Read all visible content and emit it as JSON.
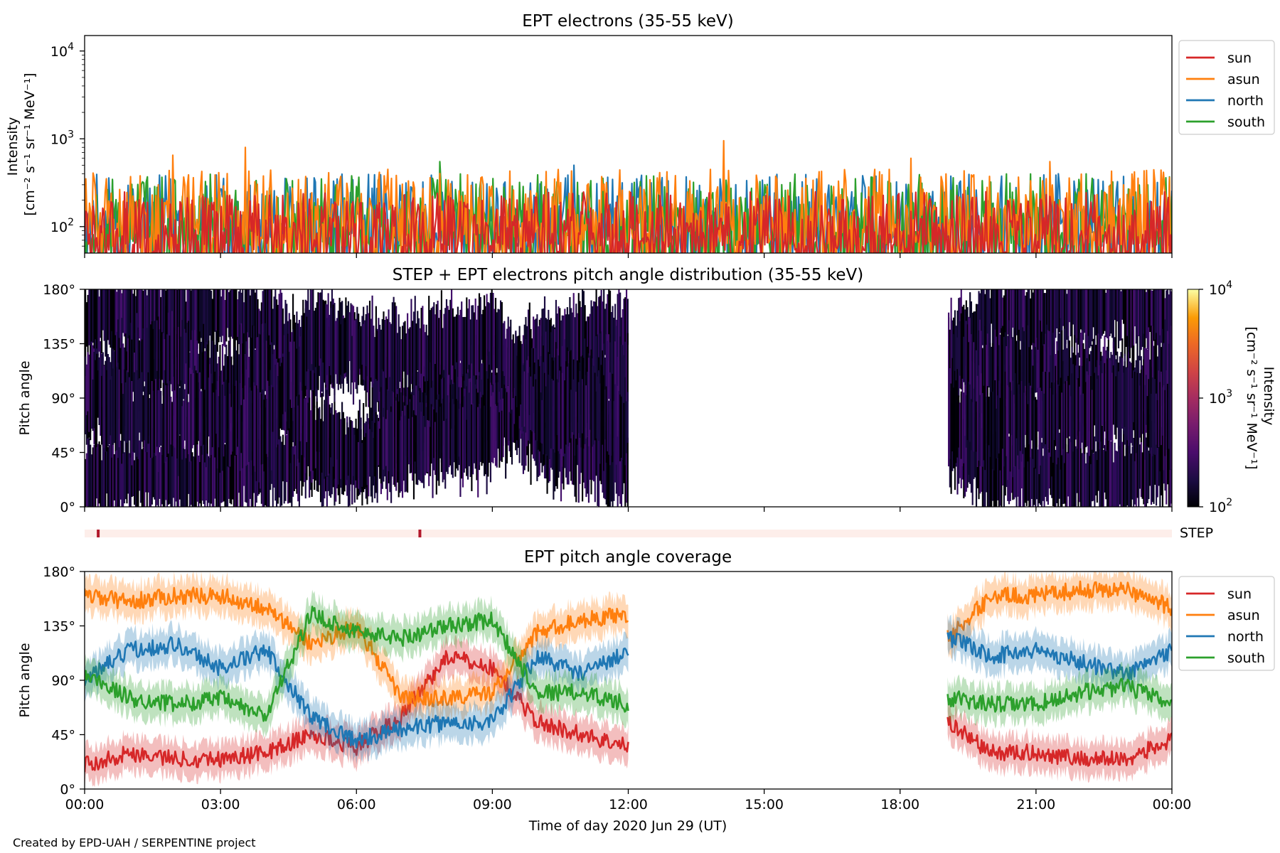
{
  "credit": "Created by EPD-UAH / SERPENTINE project",
  "colors": {
    "sun": "#d62728",
    "asun": "#ff7f0e",
    "north": "#1f77b4",
    "south": "#2ca02c",
    "step_bar": "#fdeeea",
    "step_mark": "#b2182b"
  },
  "x_axis": {
    "label": "Time of day 2020 Jun 29 (UT)",
    "range_hours": [
      0,
      24
    ],
    "ticks": [
      {
        "h": 0,
        "label": "00:00"
      },
      {
        "h": 3,
        "label": "03:00"
      },
      {
        "h": 6,
        "label": "06:00"
      },
      {
        "h": 9,
        "label": "09:00"
      },
      {
        "h": 12,
        "label": "12:00"
      },
      {
        "h": 15,
        "label": "15:00"
      },
      {
        "h": 18,
        "label": "18:00"
      },
      {
        "h": 21,
        "label": "21:00"
      },
      {
        "h": 24,
        "label": "00:00"
      }
    ]
  },
  "chart_data": [
    {
      "id": "intensity",
      "type": "line",
      "title": "EPT electrons (35-55 keV)",
      "ylabel_line1": "Intensity",
      "ylabel_line2": "[cm⁻² s⁻¹ sr⁻¹ MeV⁻¹]",
      "yscale": "log",
      "ylim": [
        50,
        15000
      ],
      "yticks": [
        {
          "v": 100,
          "base": "10",
          "exp": "2"
        },
        {
          "v": 1000,
          "base": "10",
          "exp": "3"
        },
        {
          "v": 10000,
          "base": "10",
          "exp": "4"
        }
      ],
      "legend_position": "outside-right",
      "legend": [
        "sun",
        "asun",
        "north",
        "south"
      ],
      "series_summary": {
        "sun": {
          "typical_range": [
            50,
            250
          ]
        },
        "asun": {
          "typical_range": [
            60,
            450
          ]
        },
        "north": {
          "typical_range": [
            60,
            400
          ]
        },
        "south": {
          "typical_range": [
            60,
            400
          ]
        }
      },
      "peaks": [
        {
          "series": "asun",
          "t_hours": 1.95,
          "value": 650
        },
        {
          "series": "asun",
          "t_hours": 3.55,
          "value": 800
        },
        {
          "series": "asun",
          "t_hours": 14.1,
          "value": 950
        },
        {
          "series": "asun",
          "t_hours": 18.25,
          "value": 600
        },
        {
          "series": "asun",
          "t_hours": 21.3,
          "value": 550
        },
        {
          "series": "south",
          "t_hours": 7.85,
          "value": 550
        },
        {
          "series": "north",
          "t_hours": 10.8,
          "value": 500
        }
      ]
    },
    {
      "id": "pad",
      "type": "heatmap",
      "title": "STEP + EPT electrons pitch angle distribution (35-55 keV)",
      "ylabel": "Pitch angle",
      "ylim": [
        0,
        180
      ],
      "yticks": [
        "0°",
        "45°",
        "90°",
        "135°",
        "180°"
      ],
      "data_intervals_hours": [
        [
          0,
          12
        ],
        [
          19.05,
          24
        ]
      ],
      "colorbar": {
        "label_line1": "Intensity",
        "label_line2": "[cm⁻² s⁻¹ sr⁻¹ MeV⁻¹]",
        "scale": "log",
        "range": [
          100,
          10000
        ],
        "ticks": [
          {
            "base": "10",
            "exp": "2"
          },
          {
            "base": "10",
            "exp": "3"
          },
          {
            "base": "10",
            "exp": "4"
          }
        ]
      }
    },
    {
      "id": "step",
      "type": "bar",
      "label": "STEP",
      "marks_hours": [
        0.3,
        7.4
      ]
    },
    {
      "id": "coverage",
      "type": "line",
      "title": "EPT pitch angle coverage",
      "ylabel": "Pitch angle",
      "ylim": [
        0,
        180
      ],
      "yticks": [
        "0°",
        "45°",
        "90°",
        "135°",
        "180°"
      ],
      "legend_position": "outside-right",
      "legend": [
        "sun",
        "asun",
        "north",
        "south"
      ],
      "data_intervals_hours": [
        [
          0,
          12
        ],
        [
          19.05,
          24
        ]
      ],
      "band_halfwidth_deg": 14,
      "series": [
        {
          "name": "sun",
          "t": [
            0,
            1,
            2,
            3,
            4,
            5,
            6,
            7,
            8,
            9,
            10,
            11,
            12,
            19.1,
            20,
            21,
            22,
            23,
            24
          ],
          "values": [
            20,
            30,
            25,
            25,
            30,
            45,
            35,
            60,
            110,
            100,
            55,
            45,
            35,
            55,
            30,
            30,
            25,
            25,
            40
          ]
        },
        {
          "name": "asun",
          "t": [
            0,
            1,
            2,
            3,
            4,
            5,
            6,
            7,
            8,
            9,
            10,
            11,
            12,
            19.1,
            20,
            21,
            22,
            23,
            24
          ],
          "values": [
            160,
            155,
            160,
            160,
            150,
            120,
            135,
            75,
            75,
            80,
            130,
            140,
            145,
            125,
            160,
            160,
            165,
            165,
            150
          ]
        },
        {
          "name": "north",
          "t": [
            0,
            1,
            2,
            3,
            4,
            5,
            6,
            7,
            8,
            9,
            10,
            11,
            12,
            19.1,
            20,
            21,
            22,
            23,
            24
          ],
          "values": [
            90,
            115,
            120,
            100,
            115,
            60,
            40,
            50,
            55,
            55,
            110,
            95,
            115,
            125,
            110,
            115,
            105,
            95,
            115
          ]
        },
        {
          "name": "south",
          "t": [
            0,
            1,
            2,
            3,
            4,
            5,
            6,
            7,
            8,
            9,
            10,
            11,
            12,
            19.1,
            20,
            21,
            22,
            23,
            24
          ],
          "values": [
            95,
            75,
            70,
            75,
            60,
            145,
            130,
            125,
            135,
            140,
            80,
            80,
            70,
            75,
            70,
            70,
            80,
            85,
            70
          ]
        }
      ]
    }
  ]
}
